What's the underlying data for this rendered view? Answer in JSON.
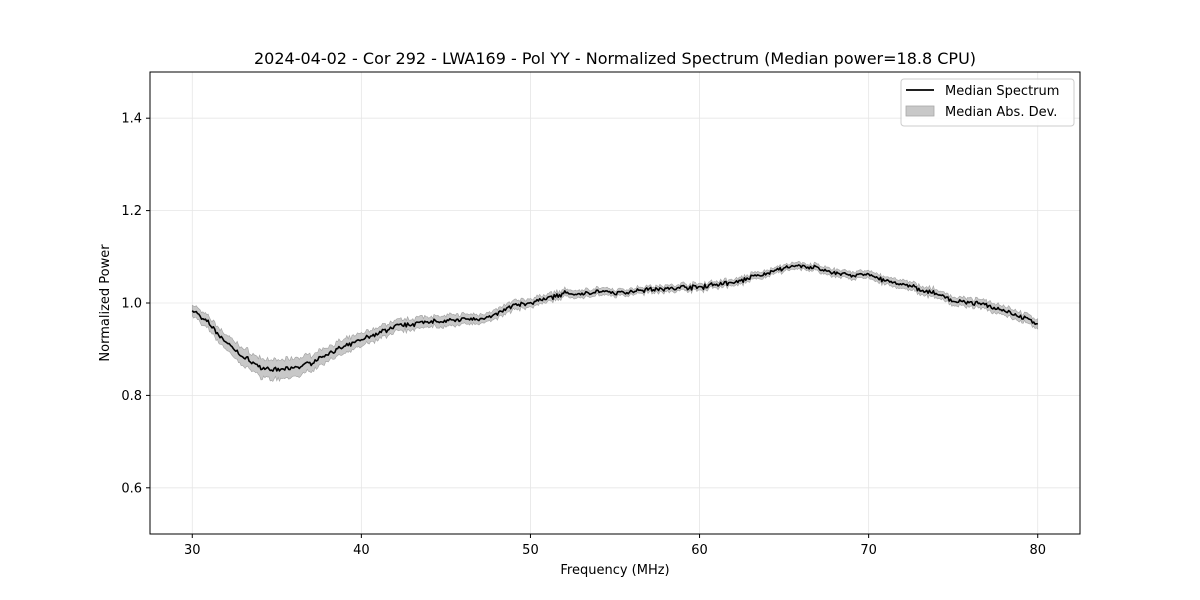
{
  "chart_data": {
    "type": "line",
    "title": "2024-04-02 - Cor 292 - LWA169 - Pol YY - Normalized Spectrum (Median power=18.8 CPU)",
    "xlabel": "Frequency (MHz)",
    "ylabel": "Normalized Power",
    "xlim": [
      27.5,
      82.5
    ],
    "ylim": [
      0.5,
      1.5
    ],
    "xticks": [
      30,
      40,
      50,
      60,
      70,
      80
    ],
    "xtick_labels": [
      "30",
      "40",
      "50",
      "60",
      "70",
      "80"
    ],
    "yticks": [
      0.6,
      0.8,
      1.0,
      1.2,
      1.4
    ],
    "ytick_labels": [
      "0.6",
      "0.8",
      "1.0",
      "1.2",
      "1.4"
    ],
    "grid": true,
    "legend_position": "top-right",
    "series": [
      {
        "name": "Median Spectrum",
        "color": "#000000",
        "x": [
          30,
          31,
          32,
          33,
          34,
          35,
          36,
          37,
          38,
          39,
          40,
          41,
          42,
          43,
          44,
          45,
          46,
          47,
          48,
          49,
          50,
          51,
          52,
          53,
          54,
          55,
          56,
          57,
          58,
          59,
          60,
          61,
          62,
          63,
          64,
          65,
          66,
          67,
          68,
          69,
          70,
          71,
          72,
          73,
          74,
          75,
          76,
          77,
          78,
          79,
          80
        ],
        "values": [
          0.985,
          0.955,
          0.915,
          0.885,
          0.86,
          0.855,
          0.86,
          0.87,
          0.89,
          0.905,
          0.92,
          0.935,
          0.95,
          0.955,
          0.96,
          0.96,
          0.965,
          0.965,
          0.975,
          0.995,
          1.0,
          1.01,
          1.02,
          1.02,
          1.025,
          1.02,
          1.025,
          1.03,
          1.03,
          1.035,
          1.035,
          1.04,
          1.045,
          1.055,
          1.065,
          1.075,
          1.08,
          1.075,
          1.065,
          1.06,
          1.06,
          1.05,
          1.04,
          1.03,
          1.02,
          1.005,
          1.0,
          0.995,
          0.985,
          0.97,
          0.955
        ]
      }
    ],
    "band": {
      "name": "Median Abs. Dev.",
      "color": "#c8c8c8",
      "half_width": [
        0.012,
        0.014,
        0.016,
        0.018,
        0.02,
        0.02,
        0.02,
        0.018,
        0.016,
        0.015,
        0.014,
        0.013,
        0.012,
        0.012,
        0.012,
        0.012,
        0.011,
        0.01,
        0.01,
        0.01,
        0.009,
        0.009,
        0.008,
        0.008,
        0.008,
        0.007,
        0.007,
        0.007,
        0.007,
        0.007,
        0.007,
        0.007,
        0.007,
        0.007,
        0.007,
        0.007,
        0.007,
        0.007,
        0.008,
        0.008,
        0.008,
        0.008,
        0.009,
        0.009,
        0.009,
        0.009,
        0.009,
        0.01,
        0.01,
        0.01,
        0.01
      ]
    }
  }
}
